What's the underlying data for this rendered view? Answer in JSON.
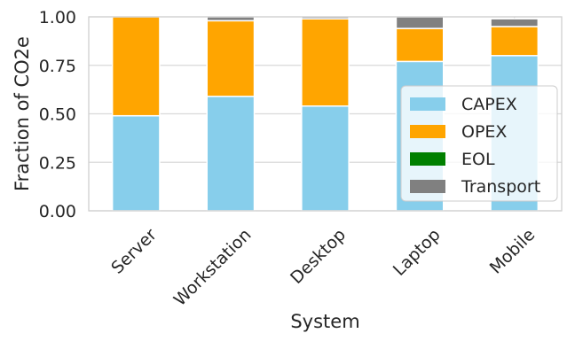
{
  "chart_data": {
    "type": "bar",
    "stacked": true,
    "title": "",
    "xlabel": "System",
    "ylabel": "Fraction of CO2e",
    "ylim": [
      0,
      1.0
    ],
    "yticks": [
      "0.00",
      "0.25",
      "0.50",
      "0.75",
      "1.00"
    ],
    "grid": true,
    "legend_position": "lower-right",
    "categories": [
      "Server",
      "Workstation",
      "Desktop",
      "Laptop",
      "Mobile"
    ],
    "series": [
      {
        "name": "CAPEX",
        "color": "#87ceeb",
        "values": [
          0.49,
          0.59,
          0.54,
          0.77,
          0.8
        ]
      },
      {
        "name": "OPEX",
        "color": "#ffa500",
        "values": [
          0.51,
          0.39,
          0.45,
          0.17,
          0.15
        ]
      },
      {
        "name": "EOL",
        "color": "#008000",
        "values": [
          0.0,
          0.0,
          0.0,
          0.0,
          0.0
        ]
      },
      {
        "name": "Transport",
        "color": "#808080",
        "values": [
          0.0,
          0.02,
          0.01,
          0.06,
          0.04
        ]
      }
    ]
  }
}
